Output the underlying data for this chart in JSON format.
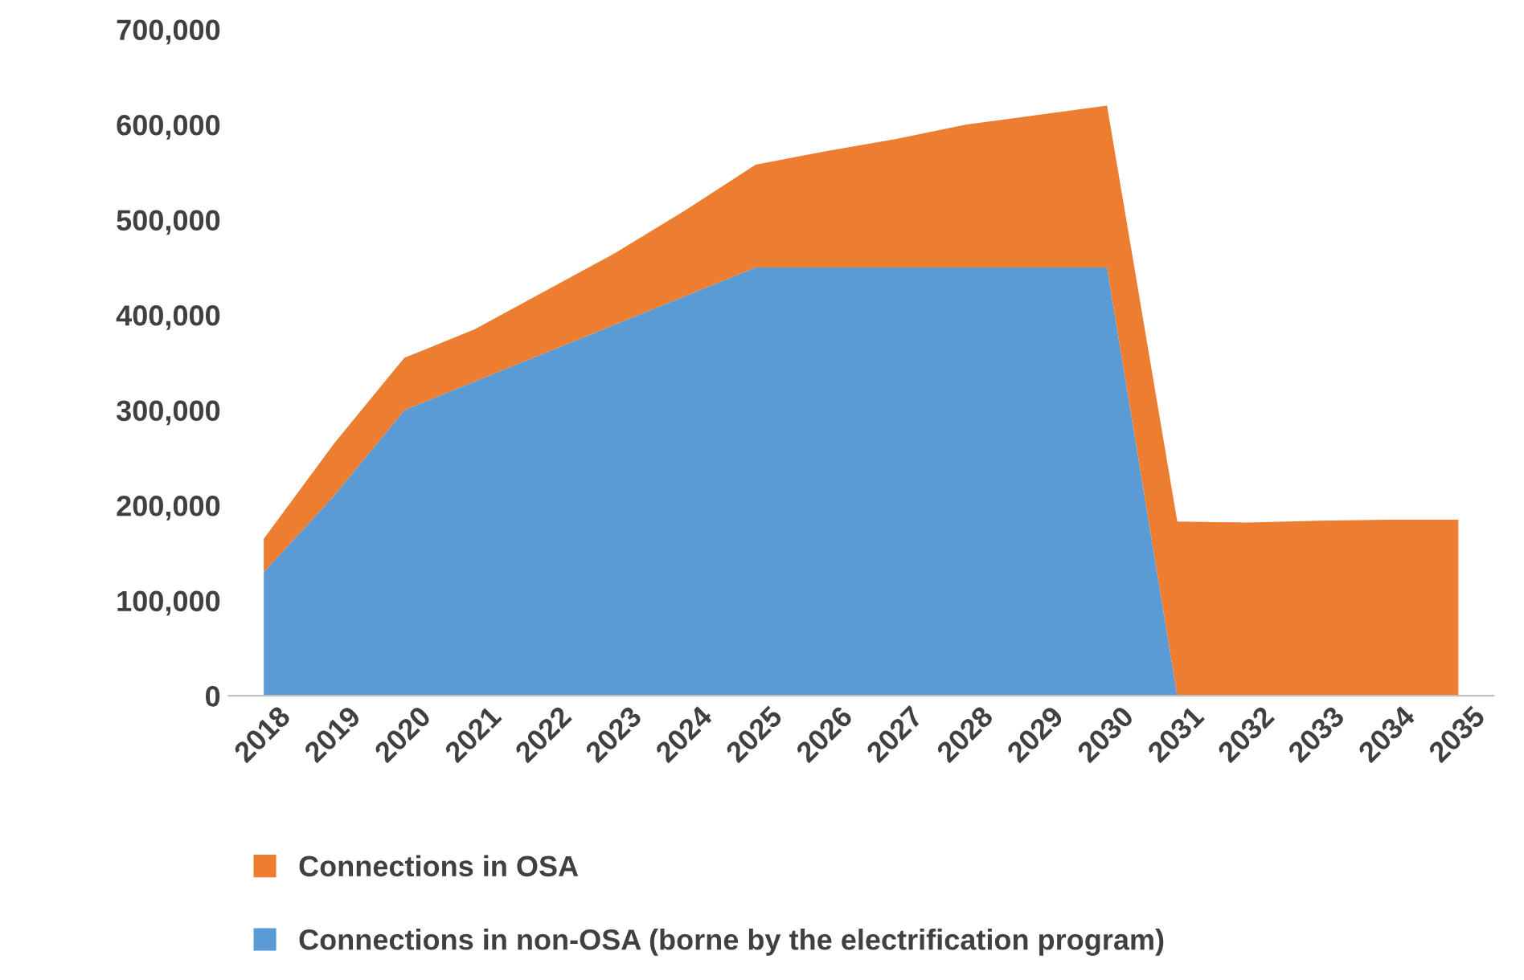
{
  "chart_data": {
    "type": "area",
    "stacked": true,
    "categories": [
      "2018",
      "2019",
      "2020",
      "2021",
      "2022",
      "2023",
      "2024",
      "2025",
      "2026",
      "2027",
      "2028",
      "2029",
      "2030",
      "2031",
      "2032",
      "2033",
      "2034",
      "2035"
    ],
    "series": [
      {
        "name": "Connections in non-OSA (borne by the electrification program)",
        "color": "#5b9bd5",
        "values": [
          130000,
          210000,
          300000,
          330000,
          360000,
          390000,
          420000,
          450000,
          450000,
          450000,
          450000,
          450000,
          450000,
          0,
          0,
          0,
          0,
          0
        ]
      },
      {
        "name": "Connections in OSA",
        "color": "#ed7d31",
        "values": [
          35000,
          55000,
          55000,
          55000,
          65000,
          75000,
          90000,
          108000,
          122000,
          135000,
          150000,
          160000,
          170000,
          183000,
          182000,
          184000,
          185000,
          185000
        ]
      }
    ],
    "ylim": [
      0,
      700000
    ],
    "yticks": [
      {
        "value": 0,
        "label": "0"
      },
      {
        "value": 100000,
        "label": "100,000"
      },
      {
        "value": 200000,
        "label": "200,000"
      },
      {
        "value": 300000,
        "label": "300,000"
      },
      {
        "value": 400000,
        "label": "400,000"
      },
      {
        "value": 500000,
        "label": "500,000"
      },
      {
        "value": 600000,
        "label": "600,000"
      },
      {
        "value": 700000,
        "label": "700,000"
      }
    ],
    "grid": false,
    "legend": "bottom"
  }
}
